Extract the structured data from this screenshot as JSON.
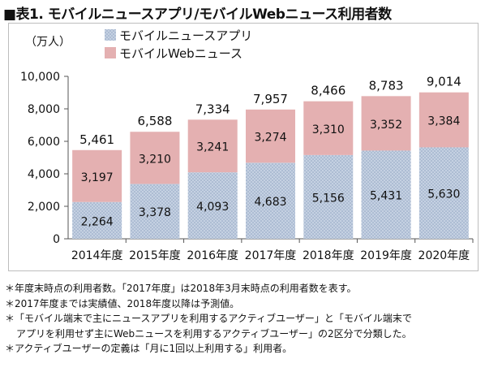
{
  "title": "■表1. モバイルニュースアプリ/モバイルWebニュース利用者数",
  "chart_data": {
    "type": "bar",
    "stacked": true,
    "unit_label": "（万人）",
    "categories": [
      "2014年度",
      "2015年度",
      "2016年度",
      "2017年度",
      "2018年度",
      "2019年度",
      "2020年度"
    ],
    "series": [
      {
        "name": "モバイルニュースアプリ",
        "values": [
          2264,
          3378,
          4093,
          4683,
          5156,
          5431,
          5630
        ],
        "labels": [
          "2,264",
          "3,378",
          "4,093",
          "4,683",
          "5,156",
          "5,431",
          "5,630"
        ],
        "color": "#c5d1e2"
      },
      {
        "name": "モバイルWebニュース",
        "values": [
          3197,
          3210,
          3241,
          3274,
          3310,
          3352,
          3384
        ],
        "labels": [
          "3,197",
          "3,210",
          "3,241",
          "3,274",
          "3,310",
          "3,352",
          "3,384"
        ],
        "color": "#e4b0b1"
      }
    ],
    "totals": [
      "5,461",
      "6,588",
      "7,334",
      "7,957",
      "8,466",
      "8,783",
      "9,014"
    ],
    "ylim": [
      0,
      10000
    ],
    "yticks": [
      0,
      2000,
      4000,
      6000,
      8000,
      10000
    ],
    "ytick_labels": [
      "0",
      "2,000",
      "4,000",
      "6,000",
      "8,000",
      "10,000"
    ],
    "grid": false,
    "legend_position": "top-left"
  },
  "notes": [
    "＊年度末時点の利用者数。「2017年度」は2018年3月末時点の利用者数を表す。",
    "＊2017年度までは実績値、2018年度以降は予測値。",
    "＊「モバイル端末で主にニュースアプリを利用するアクティブユーザー」と「モバイル端末で",
    "アプリを利用せず主にWebニュースを利用するアクティブユーザー」の2区分で分類した。",
    "＊アクティブユーザーの定義は「月に1回以上利用する」利用者。"
  ]
}
